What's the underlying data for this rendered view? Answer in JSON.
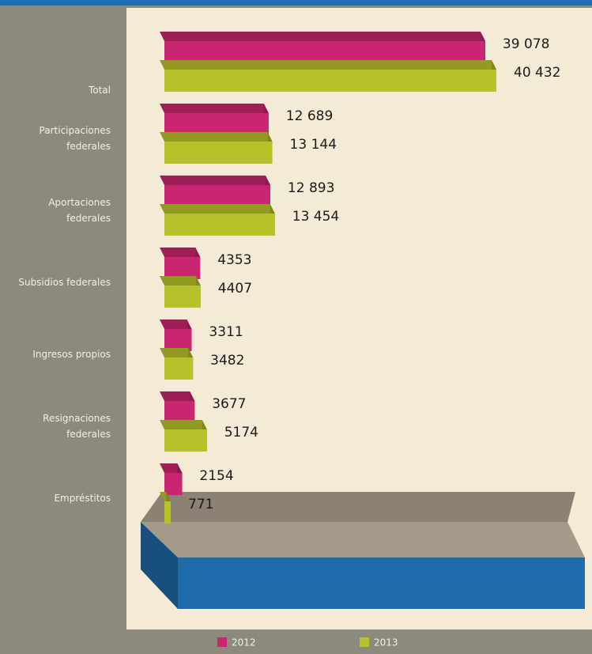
{
  "chart_data": {
    "type": "bar3d_horizontal",
    "categories": [
      "Total",
      "Participaciones federales",
      "Aportaciones federales",
      "Subsidios federales",
      "Ingresos propios",
      "Resignaciones federales",
      "Empréstitos"
    ],
    "series": [
      {
        "name": "2012",
        "color": "#c8266e",
        "values": [
          39078,
          12689,
          12893,
          4353,
          3311,
          3677,
          2154
        ],
        "value_labels": [
          "39 078",
          "12 689",
          "12 893",
          "4353",
          "3311",
          "3677",
          "2154"
        ]
      },
      {
        "name": "2013",
        "color": "#b5c22a",
        "values": [
          40432,
          13144,
          13454,
          4407,
          3482,
          5174,
          771
        ],
        "value_labels": [
          "40 432",
          "13 144",
          "13 454",
          "4407",
          "3482",
          "5174",
          "771"
        ]
      }
    ]
  }
}
